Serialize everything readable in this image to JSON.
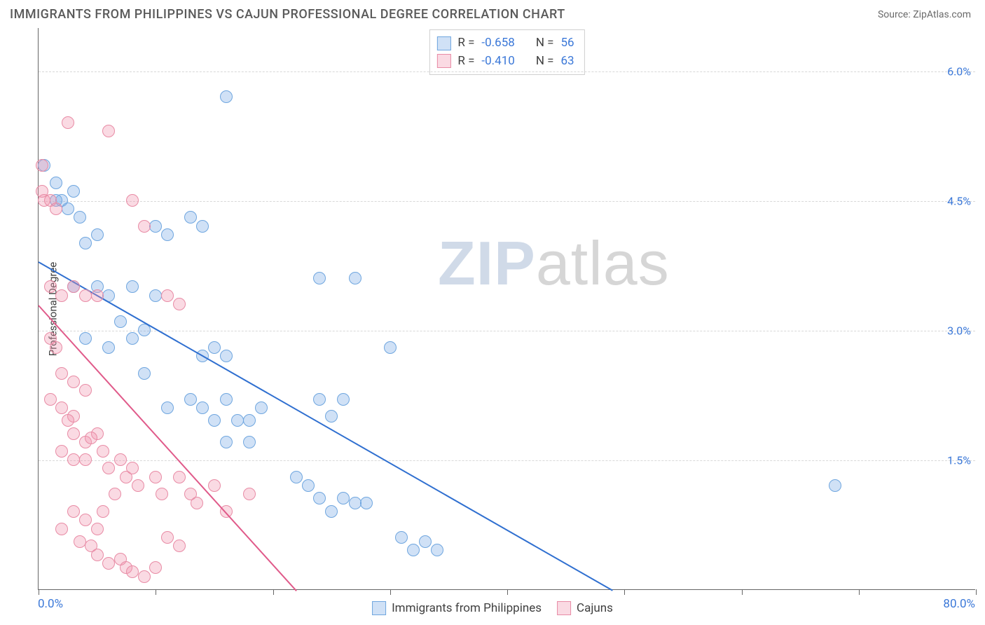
{
  "header": {
    "title": "IMMIGRANTS FROM PHILIPPINES VS CAJUN PROFESSIONAL DEGREE CORRELATION CHART",
    "source_label": "Source: ",
    "source_value": "ZipAtlas.com"
  },
  "chart": {
    "type": "scatter",
    "ylabel": "Professional Degree",
    "xlim": [
      0,
      80
    ],
    "ylim": [
      0,
      6.5
    ],
    "xlabel_min": "0.0%",
    "xlabel_max": "80.0%",
    "yticks": [
      {
        "v": 1.5,
        "label": "1.5%"
      },
      {
        "v": 3.0,
        "label": "3.0%"
      },
      {
        "v": 4.5,
        "label": "4.5%"
      },
      {
        "v": 6.0,
        "label": "6.0%"
      }
    ],
    "xticks": [
      0,
      10,
      20,
      30,
      40,
      50,
      60,
      70,
      80
    ],
    "grid_color": "#d8d8d8",
    "axis_color": "#666666",
    "background_color": "#ffffff",
    "watermark": {
      "zip": "ZIP",
      "atlas": "atlas"
    },
    "series": [
      {
        "name": "Immigrants from Philippines",
        "fill": "rgba(120,170,230,0.35)",
        "stroke": "#6fa6df",
        "trend_color": "#2f6fd0",
        "trend": {
          "x1": 0,
          "y1": 3.8,
          "x2": 49,
          "y2": 0
        },
        "R": "-0.658",
        "N": "56",
        "points": [
          [
            0.5,
            4.9
          ],
          [
            1.5,
            4.7
          ],
          [
            3,
            4.6
          ],
          [
            2,
            4.5
          ],
          [
            4,
            4.0
          ],
          [
            10,
            4.2
          ],
          [
            11,
            4.1
          ],
          [
            13,
            4.3
          ],
          [
            14,
            4.2
          ],
          [
            16,
            5.7
          ],
          [
            3,
            3.5
          ],
          [
            5,
            3.5
          ],
          [
            6,
            3.4
          ],
          [
            8,
            3.5
          ],
          [
            10,
            3.4
          ],
          [
            24,
            3.6
          ],
          [
            27,
            3.6
          ],
          [
            4,
            2.9
          ],
          [
            8,
            2.9
          ],
          [
            6,
            2.8
          ],
          [
            14,
            2.7
          ],
          [
            15,
            2.8
          ],
          [
            16,
            2.7
          ],
          [
            30,
            2.8
          ],
          [
            9,
            2.5
          ],
          [
            11,
            2.1
          ],
          [
            13,
            2.2
          ],
          [
            14,
            2.1
          ],
          [
            16,
            2.2
          ],
          [
            17,
            1.95
          ],
          [
            18,
            1.95
          ],
          [
            19,
            2.1
          ],
          [
            24,
            2.2
          ],
          [
            25,
            2.0
          ],
          [
            26,
            2.2
          ],
          [
            15,
            1.95
          ],
          [
            16,
            1.7
          ],
          [
            18,
            1.7
          ],
          [
            22,
            1.3
          ],
          [
            23,
            1.2
          ],
          [
            24,
            1.05
          ],
          [
            25,
            0.9
          ],
          [
            26,
            1.05
          ],
          [
            27,
            1.0
          ],
          [
            28,
            1.0
          ],
          [
            31,
            0.6
          ],
          [
            32,
            0.45
          ],
          [
            33,
            0.55
          ],
          [
            34,
            0.45
          ],
          [
            68,
            1.2
          ],
          [
            1.5,
            4.5
          ],
          [
            2.5,
            4.4
          ],
          [
            3.5,
            4.3
          ],
          [
            5,
            4.1
          ],
          [
            7,
            3.1
          ],
          [
            9,
            3.0
          ]
        ]
      },
      {
        "name": "Cajuns",
        "fill": "rgba(240,150,175,0.35)",
        "stroke": "#e88ba5",
        "trend_color": "#e05a8a",
        "trend": {
          "x1": 0,
          "y1": 3.3,
          "x2": 22,
          "y2": 0
        },
        "R": "-0.410",
        "N": "63",
        "points": [
          [
            0.3,
            4.9
          ],
          [
            0.3,
            4.6
          ],
          [
            0.5,
            4.5
          ],
          [
            1,
            4.5
          ],
          [
            1.5,
            4.4
          ],
          [
            2.5,
            5.4
          ],
          [
            6,
            5.3
          ],
          [
            8,
            4.5
          ],
          [
            9,
            4.2
          ],
          [
            1,
            3.5
          ],
          [
            2,
            3.4
          ],
          [
            3,
            3.5
          ],
          [
            4,
            3.4
          ],
          [
            5,
            3.4
          ],
          [
            11,
            3.4
          ],
          [
            12,
            3.3
          ],
          [
            1,
            2.9
          ],
          [
            1.5,
            2.8
          ],
          [
            2,
            2.5
          ],
          [
            3,
            2.4
          ],
          [
            4,
            2.3
          ],
          [
            1,
            2.2
          ],
          [
            2,
            2.1
          ],
          [
            3,
            2.0
          ],
          [
            2.5,
            1.95
          ],
          [
            3,
            1.8
          ],
          [
            4,
            1.7
          ],
          [
            5,
            1.8
          ],
          [
            4.5,
            1.75
          ],
          [
            2,
            1.6
          ],
          [
            3,
            1.5
          ],
          [
            4,
            1.5
          ],
          [
            5.5,
            1.6
          ],
          [
            6,
            1.4
          ],
          [
            7,
            1.5
          ],
          [
            7.5,
            1.3
          ],
          [
            8,
            1.4
          ],
          [
            8.5,
            1.2
          ],
          [
            10,
            1.3
          ],
          [
            10.5,
            1.1
          ],
          [
            12,
            1.3
          ],
          [
            13,
            1.1
          ],
          [
            13.5,
            1.0
          ],
          [
            15,
            1.2
          ],
          [
            16,
            0.9
          ],
          [
            18,
            1.1
          ],
          [
            3,
            0.9
          ],
          [
            4,
            0.8
          ],
          [
            5,
            0.7
          ],
          [
            5,
            0.4
          ],
          [
            6,
            0.3
          ],
          [
            7,
            0.35
          ],
          [
            7.5,
            0.25
          ],
          [
            8,
            0.2
          ],
          [
            9,
            0.15
          ],
          [
            10,
            0.25
          ],
          [
            2,
            0.7
          ],
          [
            3.5,
            0.55
          ],
          [
            4.5,
            0.5
          ],
          [
            11,
            0.6
          ],
          [
            12,
            0.5
          ],
          [
            6.5,
            1.1
          ],
          [
            5.5,
            0.9
          ]
        ]
      }
    ],
    "stats_labels": {
      "R": "R =",
      "N": "N ="
    }
  },
  "bottom_legend": {
    "items": [
      {
        "label": "Immigrants from Philippines",
        "fill": "rgba(120,170,230,0.35)",
        "stroke": "#6fa6df"
      },
      {
        "label": "Cajuns",
        "fill": "rgba(240,150,175,0.35)",
        "stroke": "#e88ba5"
      }
    ]
  }
}
